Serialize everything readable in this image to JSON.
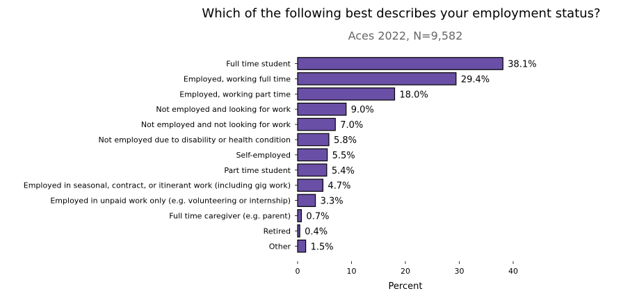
{
  "chart_data": {
    "type": "bar",
    "orientation": "horizontal",
    "title": "Which of the following best describes your employment status?",
    "subtitle": "Aces 2022, N=9,582",
    "xlabel": "Percent",
    "ylabel": "",
    "xlim": [
      0,
      42
    ],
    "xticks": [
      0,
      10,
      20,
      30,
      40
    ],
    "grid": false,
    "bar_color": "#6a4fa6",
    "bar_edge_color": "#000000",
    "categories": [
      "Full time student",
      "Employed, working full time",
      "Employed, working part time",
      "Not employed and looking for work",
      "Not employed and not looking for work",
      "Not employed due to disability or health condition",
      "Self-employed",
      "Part time student",
      "Employed in seasonal, contract, or itinerant work (including gig work)",
      "Employed in unpaid work only (e.g. volunteering or internship)",
      "Full time caregiver (e.g. parent)",
      "Retired",
      "Other"
    ],
    "values": [
      38.1,
      29.4,
      18.0,
      9.0,
      7.0,
      5.8,
      5.5,
      5.4,
      4.7,
      3.3,
      0.7,
      0.4,
      1.5
    ],
    "value_labels": [
      "38.1%",
      "29.4%",
      "18.0%",
      "9.0%",
      "7.0%",
      "5.8%",
      "5.5%",
      "5.4%",
      "4.7%",
      "3.3%",
      "0.7%",
      "0.4%",
      "1.5%"
    ]
  }
}
